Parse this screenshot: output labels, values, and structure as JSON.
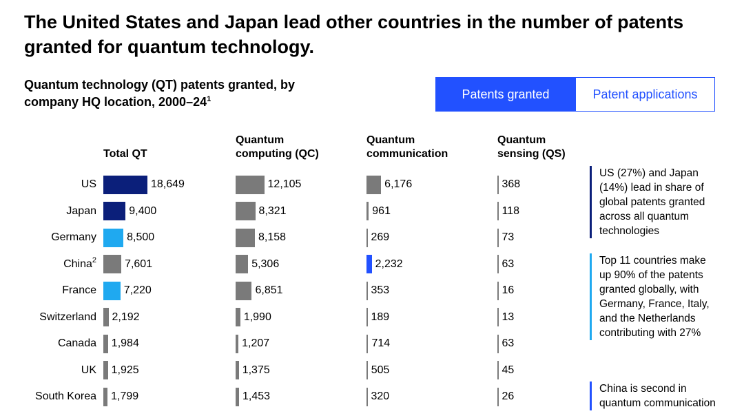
{
  "chart_data": {
    "type": "table-bars",
    "title": "The United States and Japan lead other countries in the number of patents granted for quantum technology.",
    "subtitle": "Quantum technology (QT) patents granted, by company HQ location, 2000–24",
    "subtitle_footnote": "1",
    "toggle": [
      "Patents granted",
      "Patent applications"
    ],
    "categories": [
      "US",
      "Japan",
      "Germany",
      "China",
      "France",
      "Switzerland",
      "Canada",
      "UK",
      "South Korea"
    ],
    "category_footnotes": {
      "China": "2"
    },
    "series": [
      {
        "name": "Total QT",
        "values": [
          18649,
          9400,
          8500,
          7601,
          7220,
          2192,
          1984,
          1925,
          1799
        ],
        "value_labels": [
          "18,649",
          "9,400",
          "8,500",
          "7,601",
          "7,220",
          "2,192",
          "1,984",
          "1,925",
          "1,799"
        ],
        "colors": [
          "#0b1f7a",
          "#0b1f7a",
          "#1fa9f0",
          "#7a7a7a",
          "#1fa9f0",
          "#7a7a7a",
          "#7a7a7a",
          "#7a7a7a",
          "#7a7a7a"
        ]
      },
      {
        "name": "Quantum computing (QC)",
        "values": [
          12105,
          8321,
          8158,
          5306,
          6851,
          1990,
          1207,
          1375,
          1453
        ],
        "value_labels": [
          "12,105",
          "8,321",
          "8,158",
          "5,306",
          "6,851",
          "1,990",
          "1,207",
          "1,375",
          "1,453"
        ],
        "colors": [
          "#7a7a7a",
          "#7a7a7a",
          "#7a7a7a",
          "#7a7a7a",
          "#7a7a7a",
          "#7a7a7a",
          "#7a7a7a",
          "#7a7a7a",
          "#7a7a7a"
        ]
      },
      {
        "name": "Quantum communication",
        "values": [
          6176,
          961,
          269,
          2232,
          353,
          189,
          714,
          505,
          320
        ],
        "value_labels": [
          "6,176",
          "961",
          "269",
          "2,232",
          "353",
          "189",
          "714",
          "505",
          "320"
        ],
        "colors": [
          "#7a7a7a",
          "#7a7a7a",
          "#7a7a7a",
          "#2251ff",
          "#7a7a7a",
          "#7a7a7a",
          "#7a7a7a",
          "#7a7a7a",
          "#7a7a7a"
        ]
      },
      {
        "name": "Quantum sensing (QS)",
        "values": [
          368,
          118,
          73,
          63,
          16,
          13,
          63,
          45,
          26
        ],
        "colors": [
          "#7a7a7a",
          "#7a7a7a",
          "#7a7a7a",
          "#7a7a7a",
          "#7a7a7a",
          "#7a7a7a",
          "#7a7a7a",
          "#7a7a7a",
          "#7a7a7a"
        ]
      }
    ],
    "annotations": [
      {
        "text": "US (27%) and Japan (14%) lead in share of global patents granted across all quantum technologies",
        "color": "#0b1f7a"
      },
      {
        "text": "Top 11 countries make up 90% of the patents granted globally, with Germany, France, Italy, and the Netherlands contributing with 27%",
        "color": "#1fa9f0"
      },
      {
        "text": "China is second in quantum communication",
        "color": "#2251ff"
      }
    ]
  }
}
